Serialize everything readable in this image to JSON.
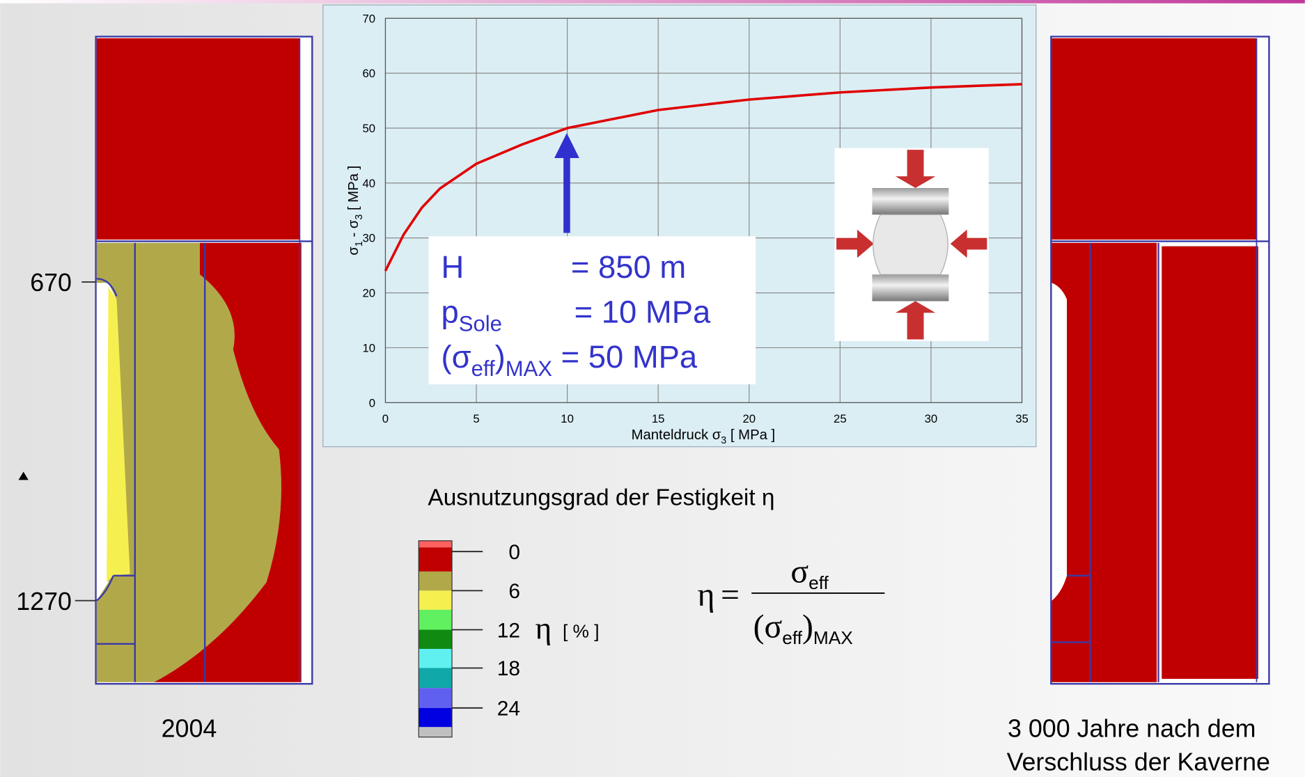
{
  "chart_data": {
    "type": "line",
    "x": [
      0,
      1,
      2,
      3,
      5,
      7.5,
      10,
      15,
      20,
      25,
      30,
      35
    ],
    "values": [
      24,
      30.6,
      35.5,
      39,
      43.5,
      47,
      50,
      53.3,
      55.2,
      56.5,
      57.4,
      58
    ],
    "color": "#e00000",
    "xlim": [
      0,
      35
    ],
    "ylim": [
      0,
      70
    ],
    "xticks": [
      0,
      5,
      10,
      15,
      20,
      25,
      30,
      35
    ],
    "yticks": [
      0,
      10,
      20,
      30,
      40,
      50,
      60,
      70
    ],
    "grid": true,
    "xlabel_parts": [
      "Manteldruck σ",
      "3",
      " [ MPa ]"
    ],
    "ylabel_parts": [
      "σ",
      "1",
      " - σ",
      "3",
      " [ MPa ]"
    ],
    "annotation": {
      "line1": [
        "H",
        "= 850 m"
      ],
      "line2": [
        "p",
        "Sole",
        "= 10 MPa"
      ],
      "line3": [
        "(σ",
        "eff",
        ")",
        "MAX",
        " = 50 MPa"
      ]
    }
  },
  "left_panel": {
    "depth_top": "670",
    "depth_bottom": "1270",
    "caption": "2004"
  },
  "right_panel": {
    "caption_line1": "3 000 Jahre nach dem",
    "caption_line2": "Verschluss der Kaverne"
  },
  "scale": {
    "title": "Ausnutzungsgrad der Festigkeit  η",
    "ticks": [
      "0",
      "6",
      "12",
      "18",
      "24"
    ],
    "symbol": "η",
    "unit": "[ % ]"
  },
  "formula": {
    "lhs": "η",
    "eq": "=",
    "num_symbol": "σ",
    "num_sub": "eff",
    "den_open": "(σ",
    "den_sub": "eff",
    "den_close": ")",
    "den_sub2": "MAX"
  }
}
